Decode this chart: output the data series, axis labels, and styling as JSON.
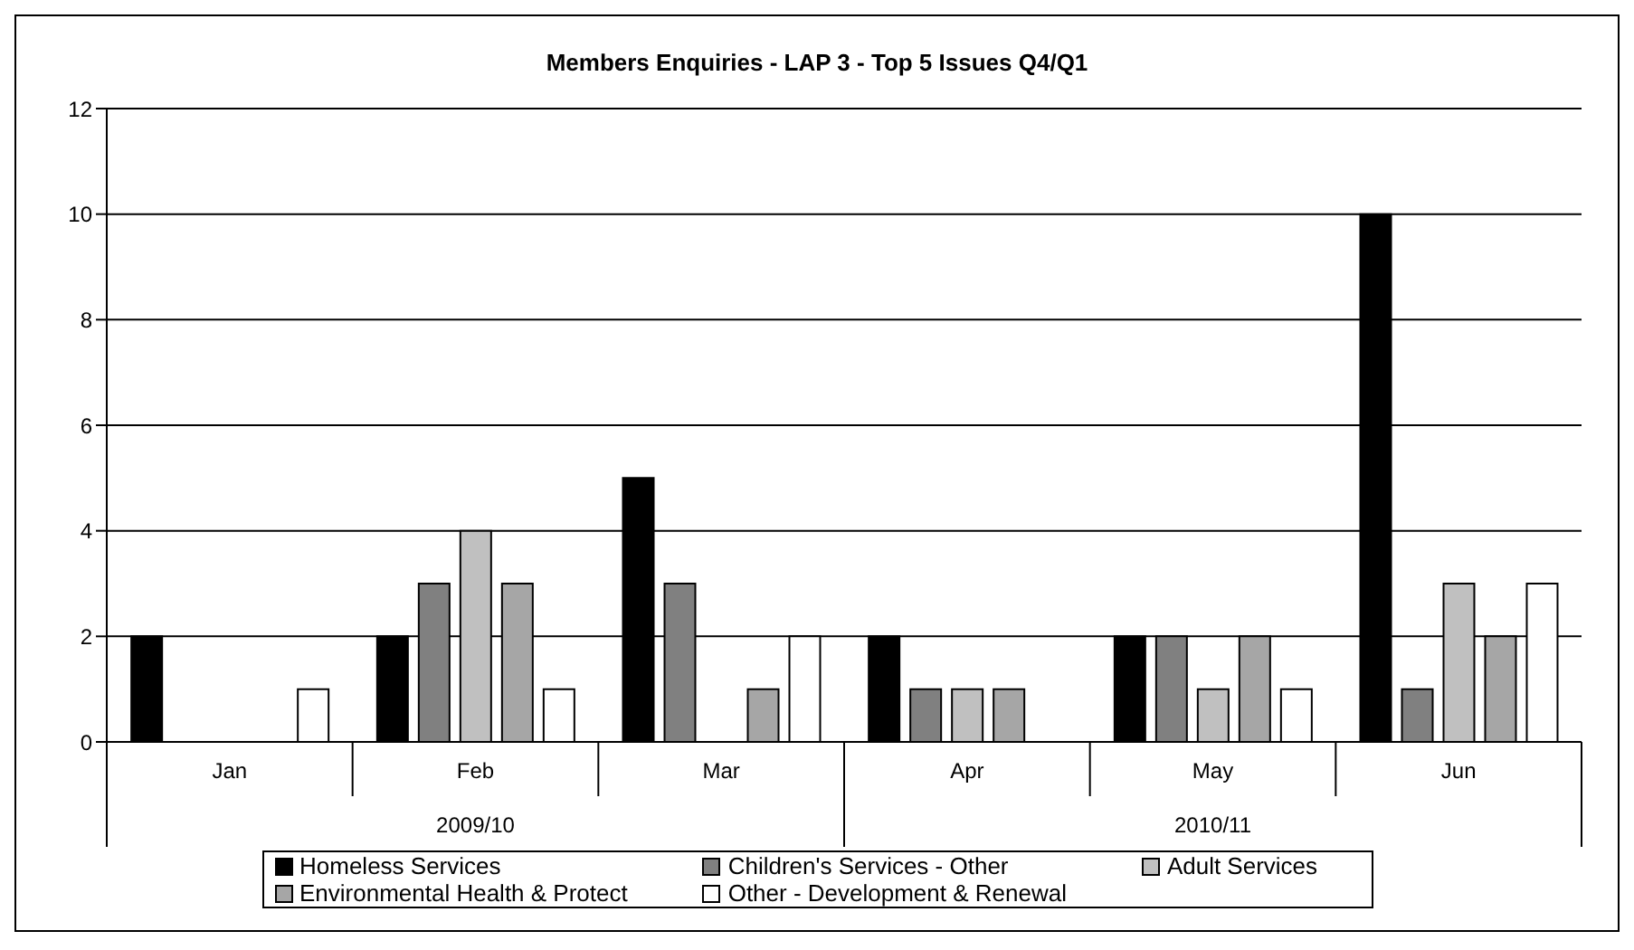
{
  "chart_data": {
    "type": "bar",
    "title": "Members Enquiries - LAP 3 - Top 5 Issues Q4/Q1",
    "categories": [
      "Jan",
      "Feb",
      "Mar",
      "Apr",
      "May",
      "Jun"
    ],
    "series": [
      {
        "name": "Homeless Services",
        "color": "#000000",
        "values": [
          2,
          2,
          5,
          2,
          2,
          10
        ]
      },
      {
        "name": "Children's Services - Other",
        "color": "#808080",
        "values": [
          0,
          3,
          3,
          1,
          2,
          1
        ]
      },
      {
        "name": "Adult Services",
        "color": "#c0c0c0",
        "values": [
          0,
          4,
          0,
          1,
          1,
          3
        ]
      },
      {
        "name": "Environmental Health & Protect",
        "color": "#a6a6a6",
        "values": [
          0,
          3,
          1,
          1,
          2,
          2
        ]
      },
      {
        "name": "Other - Development & Renewal",
        "color": "#ffffff",
        "values": [
          1,
          1,
          2,
          0,
          1,
          3
        ]
      }
    ],
    "annotations": [
      "2009/10",
      "2010/11"
    ],
    "ylim": [
      0,
      12
    ],
    "yticks": [
      0,
      2,
      4,
      6,
      8,
      10,
      12
    ],
    "grid": "y",
    "legend": "bottom"
  }
}
